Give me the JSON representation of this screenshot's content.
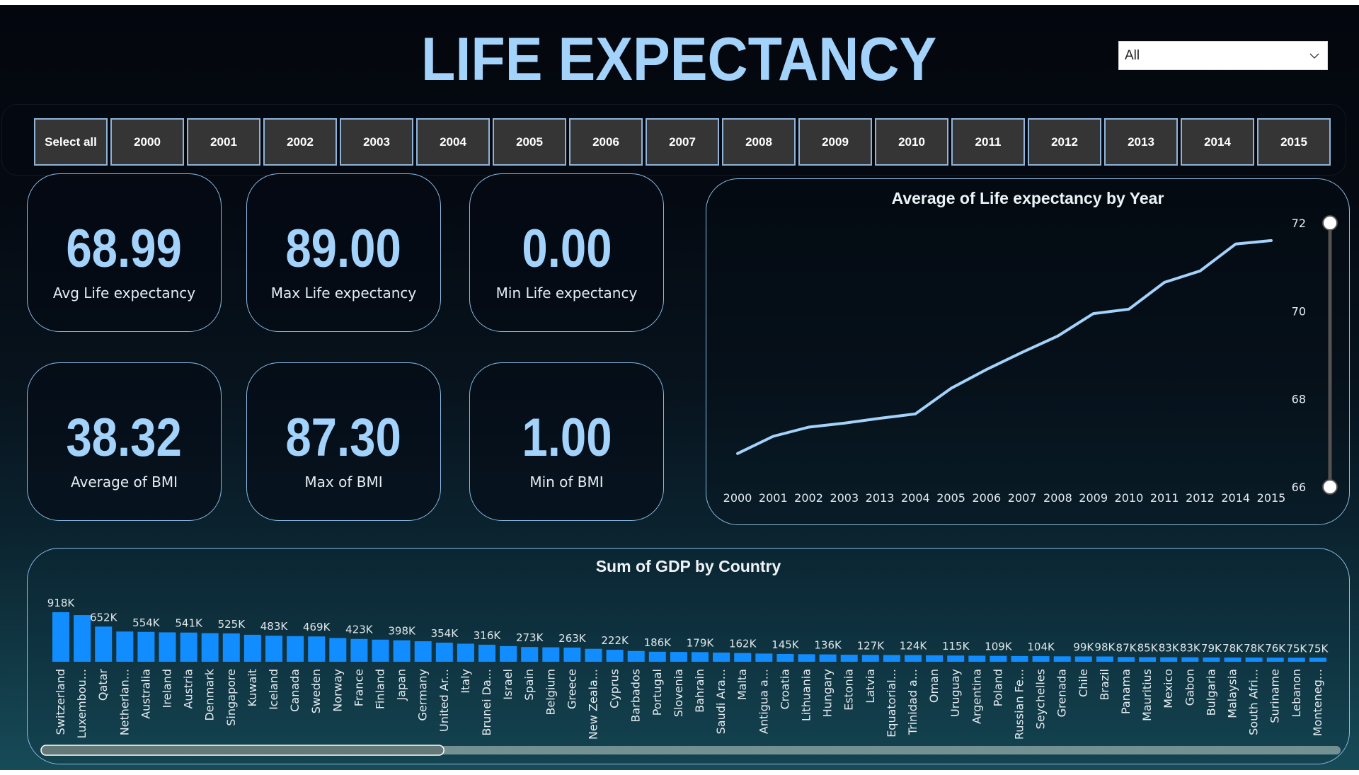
{
  "header": {
    "title": "LIFE EXPECTANCY",
    "dropdown": {
      "selected": "All",
      "icon": "chevron-down-icon"
    }
  },
  "year_slicer": {
    "items": [
      "Select all",
      "2000",
      "2001",
      "2002",
      "2003",
      "2004",
      "2005",
      "2006",
      "2007",
      "2008",
      "2009",
      "2010",
      "2011",
      "2012",
      "2013",
      "2014",
      "2015"
    ]
  },
  "kpis": [
    {
      "value": "68.99",
      "label": "Avg Life expectancy"
    },
    {
      "value": "89.00",
      "label": "Max Life expectancy"
    },
    {
      "value": "0.00",
      "label": "Min Life expectancy"
    },
    {
      "value": "38.32",
      "label": "Average of  BMI"
    },
    {
      "value": "87.30",
      "label": "Max of  BMI"
    },
    {
      "value": "1.00",
      "label": "Min of  BMI"
    }
  ],
  "colors": {
    "accent": "#a3d2fb",
    "bar": "#118dff",
    "line": "#a3d2fb",
    "card_border": "#8cbbe6",
    "slicer_bg": "#353535"
  },
  "chart_data": [
    {
      "type": "line",
      "title": "Average of Life expectancy by Year",
      "xlabel": "",
      "ylabel": "",
      "categories": [
        "2000",
        "2001",
        "2002",
        "2003",
        "2013",
        "2004",
        "2005",
        "2006",
        "2007",
        "2008",
        "2009",
        "2010",
        "2011",
        "2012",
        "2014",
        "2015"
      ],
      "values": [
        66.76,
        67.15,
        67.36,
        67.45,
        67.56,
        67.66,
        68.24,
        68.67,
        69.06,
        69.43,
        69.94,
        70.04,
        70.65,
        70.91,
        71.52,
        71.6
      ],
      "ylim": [
        66,
        72
      ],
      "yticks": [
        "72",
        "70",
        "68",
        "66"
      ],
      "yaxis_position": "right",
      "y_range_slider": {
        "min": 66,
        "max": 72
      },
      "grid": false
    },
    {
      "type": "bar",
      "title": "Sum of GDP by Country",
      "xlabel": "",
      "ylabel": "",
      "categories": [
        "Switzerland",
        "Luxembou...",
        "Qatar",
        "Netherlan...",
        "Australia",
        "Ireland",
        "Austria",
        "Denmark",
        "Singapore",
        "Kuwait",
        "Iceland",
        "Canada",
        "Sweden",
        "Norway",
        "France",
        "Finland",
        "Japan",
        "Germany",
        "United Ar...",
        "Italy",
        "Brunei Da...",
        "Israel",
        "Spain",
        "Belgium",
        "Greece",
        "New Zeala...",
        "Cyprus",
        "Barbados",
        "Portugal",
        "Slovenia",
        "Bahrain",
        "Saudi Ara...",
        "Malta",
        "Antigua a...",
        "Croatia",
        "Lithuania",
        "Hungary",
        "Estonia",
        "Latvia",
        "Equatorial...",
        "Trinidad a...",
        "Oman",
        "Uruguay",
        "Argentina",
        "Poland",
        "Russian Fe...",
        "Seychelles",
        "Grenada",
        "Chile",
        "Brazil",
        "Panama",
        "Mauritius",
        "Mexico",
        "Gabon",
        "Bulgaria",
        "Malaysia",
        "South Afri...",
        "Suriname",
        "Lebanon",
        "Monteneg..."
      ],
      "values": [
        918000,
        865000,
        652000,
        560000,
        554000,
        545000,
        541000,
        530000,
        525000,
        500000,
        483000,
        475000,
        469000,
        440000,
        423000,
        410000,
        398000,
        380000,
        354000,
        335000,
        316000,
        290000,
        273000,
        268000,
        263000,
        240000,
        222000,
        200000,
        186000,
        182000,
        179000,
        170000,
        162000,
        152000,
        145000,
        140000,
        136000,
        130000,
        127000,
        125000,
        124000,
        120000,
        115000,
        112000,
        109000,
        106000,
        104000,
        101000,
        99000,
        98000,
        87000,
        85000,
        83000,
        83000,
        79000,
        78000,
        78000,
        76000,
        75000,
        75000
      ],
      "data_labels": [
        "918K",
        "",
        "652K",
        "",
        "554K",
        "",
        "541K",
        "",
        "525K",
        "",
        "483K",
        "",
        "469K",
        "",
        "423K",
        "",
        "398K",
        "",
        "354K",
        "",
        "316K",
        "",
        "273K",
        "",
        "263K",
        "",
        "222K",
        "",
        "186K",
        "",
        "179K",
        "",
        "162K",
        "",
        "145K",
        "",
        "136K",
        "",
        "127K",
        "",
        "124K",
        "",
        "115K",
        "",
        "109K",
        "",
        "104K",
        "",
        "99K",
        "98K",
        "87K",
        "85K",
        "83K",
        "83K",
        "79K",
        "78K",
        "78K",
        "76K",
        "75K",
        "75K"
      ],
      "ylim": [
        0,
        918000
      ],
      "grid": false,
      "horizontal_scroll_visible_fraction": 0.31,
      "horizontal_scroll_position": 0
    }
  ]
}
